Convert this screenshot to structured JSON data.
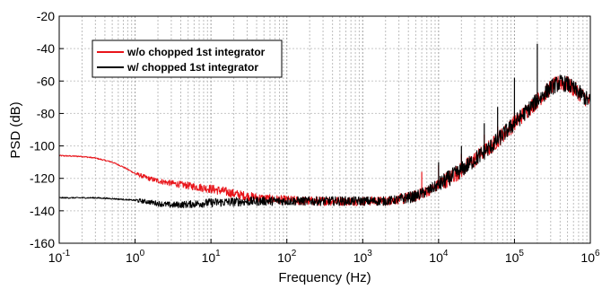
{
  "chart_data": {
    "type": "line",
    "xlabel": "Frequency (Hz)",
    "ylabel": "PSD (dB)",
    "xscale": "log",
    "xlim": [
      0.1,
      1000000
    ],
    "ylim": [
      -160,
      -20
    ],
    "yticks": [
      -160,
      -140,
      -120,
      -100,
      -80,
      -60,
      -40,
      -20
    ],
    "xticks": [
      {
        "base": "10",
        "exp": "-1"
      },
      {
        "base": "10",
        "exp": "0"
      },
      {
        "base": "10",
        "exp": "1"
      },
      {
        "base": "10",
        "exp": "2"
      },
      {
        "base": "10",
        "exp": "3"
      },
      {
        "base": "10",
        "exp": "4"
      },
      {
        "base": "10",
        "exp": "5"
      },
      {
        "base": "10",
        "exp": "6"
      }
    ],
    "grid": true,
    "legend_position": "top-left",
    "series": [
      {
        "name": "w/o chopped 1st integrator",
        "color": "#e8141a",
        "x": [
          0.1,
          0.2,
          0.3,
          0.5,
          0.7,
          1,
          1.5,
          2,
          3,
          5,
          7,
          10,
          15,
          20,
          30,
          50,
          70,
          100,
          200,
          500,
          1000,
          2000,
          3000,
          5000,
          7000,
          10000,
          20000,
          50000,
          100000,
          200000,
          300000,
          400000,
          500000,
          700000,
          1000000
        ],
        "values": [
          -106,
          -106.5,
          -107.5,
          -110,
          -113,
          -117,
          -120,
          -121.5,
          -123,
          -124.5,
          -125.5,
          -126.5,
          -128,
          -129.5,
          -131,
          -132.5,
          -133,
          -133.5,
          -134,
          -134,
          -134,
          -134,
          -133,
          -131,
          -128,
          -124,
          -115,
          -100,
          -86,
          -72,
          -64,
          -61,
          -62,
          -67,
          -73
        ],
        "spikes": [
          [
            6000,
            -116
          ],
          [
            10000,
            -112
          ],
          [
            20000,
            -105
          ],
          [
            40000,
            -93
          ],
          [
            60000,
            -88
          ],
          [
            100000,
            -79
          ]
        ]
      },
      {
        "name": "w/ chopped 1st integrator",
        "color": "#000000",
        "x": [
          0.1,
          0.2,
          0.3,
          0.5,
          0.7,
          1,
          1.5,
          2,
          3,
          5,
          7,
          10,
          20,
          50,
          100,
          200,
          500,
          1000,
          2000,
          3000,
          5000,
          7000,
          10000,
          20000,
          50000,
          100000,
          200000,
          300000,
          400000,
          500000,
          700000,
          1000000
        ],
        "values": [
          -132,
          -132,
          -132,
          -132.5,
          -133,
          -133.5,
          -134.5,
          -135.5,
          -136.5,
          -136,
          -135.5,
          -135,
          -134.5,
          -134,
          -134,
          -134,
          -134,
          -134,
          -134,
          -133,
          -131,
          -128,
          -124,
          -115,
          -100,
          -86,
          -72,
          -64,
          -61,
          -62,
          -67,
          -73
        ],
        "spikes": [
          [
            200000,
            -37
          ],
          [
            100000,
            -58
          ],
          [
            60000,
            -76
          ],
          [
            40000,
            -86
          ],
          [
            20000,
            -100
          ],
          [
            10000,
            -110
          ]
        ]
      }
    ]
  }
}
